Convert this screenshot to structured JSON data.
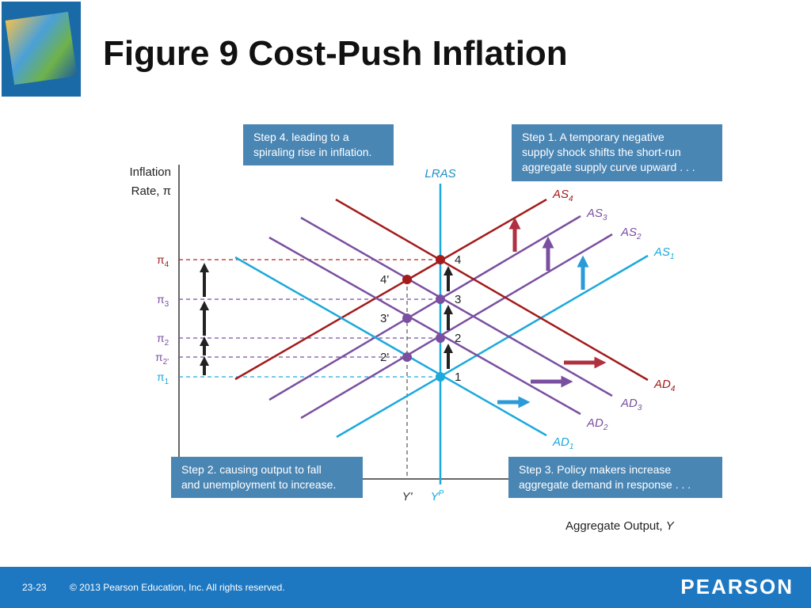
{
  "header": {
    "title": "Figure 9  Cost-Push Inflation"
  },
  "steps": [
    {
      "lines": [
        "Step 4. leading to a",
        "spiraling rise in inflation."
      ]
    },
    {
      "lines": [
        "Step 1. A temporary negative",
        "supply shock shifts the short-run",
        "aggregate supply curve upward . . ."
      ]
    },
    {
      "lines": [
        "Step 2. causing output to fall",
        "and unemployment to increase."
      ]
    },
    {
      "lines": [
        "Step 3. Policy makers increase",
        "aggregate demand in response . . ."
      ]
    }
  ],
  "y_axis": {
    "lines": [
      "Inflation",
      "Rate, π"
    ]
  },
  "x_axis": {
    "text": "Aggregate Output, ",
    "var": "Y"
  },
  "lras": "LRAS",
  "curves": [
    {
      "main": "AS",
      "sub": "4"
    },
    {
      "main": "AS",
      "sub": "3"
    },
    {
      "main": "AS",
      "sub": "2"
    },
    {
      "main": "AS",
      "sub": "1"
    },
    {
      "main": "AD",
      "sub": "4"
    },
    {
      "main": "AD",
      "sub": "3"
    },
    {
      "main": "AD",
      "sub": "2"
    },
    {
      "main": "AD",
      "sub": "1"
    }
  ],
  "inflation_levels": [
    {
      "main": "π",
      "sub": "4"
    },
    {
      "main": "π",
      "sub": "3"
    },
    {
      "main": "π",
      "sub": "2"
    },
    {
      "main": "π",
      "sub": "2'"
    },
    {
      "main": "π",
      "sub": "1"
    }
  ],
  "points": [
    "4",
    "4'",
    "3",
    "3'",
    "2",
    "2'",
    "1"
  ],
  "output_levels": [
    {
      "main": "Y'"
    },
    {
      "main": "Y",
      "sup": "P"
    }
  ],
  "footer": {
    "page": "23-23",
    "copyright": "© 2013 Pearson Education, Inc. All rights reserved.",
    "brand": "PEARSON"
  }
}
